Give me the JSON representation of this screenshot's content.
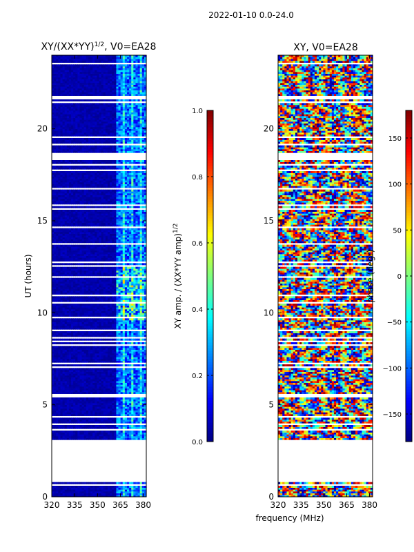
{
  "figure_title": "2022-01-10 0.0-24.0",
  "colors": {
    "jet": [
      "#00007f",
      "#0000ff",
      "#007fff",
      "#00ffff",
      "#7fff7f",
      "#ffff00",
      "#ff7f00",
      "#ff0000",
      "#7f0000"
    ]
  },
  "chart_data": [
    {
      "type": "heatmap",
      "title_base": "XY/(XX*YY)",
      "title_exp": "1/2",
      "title_rest": ", V0=EA28",
      "xlabel": "",
      "ylabel": "UT (hours)",
      "xlim": [
        320,
        382
      ],
      "ylim": [
        0,
        24
      ],
      "xticks": [
        320,
        335,
        350,
        365,
        380
      ],
      "yticks": [
        0,
        5,
        10,
        15,
        20
      ],
      "colorbar": {
        "label": "XY amp. / (XX*YY amp)",
        "label_exp": "1/2",
        "range": [
          0.0,
          1.0
        ],
        "ticks": [
          "0.0",
          "0.2",
          "0.4",
          "0.6",
          "0.8",
          "1.0"
        ],
        "tick_values": [
          0.0,
          0.2,
          0.4,
          0.6,
          0.8,
          1.0
        ]
      },
      "data_time_ranges": [
        [
          0.0,
          0.8
        ],
        [
          3.1,
          24.0
        ]
      ],
      "description": "Mostly near 0.0 (dark blue) below 362 MHz; elevated 0.2-0.7 in 362-382 MHz band, strongest near 10-12 UT"
    },
    {
      "type": "heatmap",
      "title": "XY, V0=EA28",
      "xlabel": "frequency (MHz)",
      "ylabel": "",
      "xlim": [
        320,
        382
      ],
      "ylim": [
        0,
        24
      ],
      "xticks": [
        320,
        335,
        350,
        365,
        380
      ],
      "yticks": [
        0,
        5,
        10,
        15,
        20
      ],
      "colorbar": {
        "label": "phase (degr)",
        "range": [
          -180,
          180
        ],
        "ticks": [
          "−150",
          "−100",
          "−50",
          "0",
          "50",
          "100",
          "150"
        ],
        "tick_values": [
          -150,
          -100,
          -50,
          0,
          50,
          100,
          150
        ]
      },
      "data_time_ranges": [
        [
          0.0,
          0.8
        ],
        [
          3.1,
          24.0
        ]
      ],
      "description": "Phase spans full -180 to 180 range; noisy mixture of all colors"
    }
  ]
}
